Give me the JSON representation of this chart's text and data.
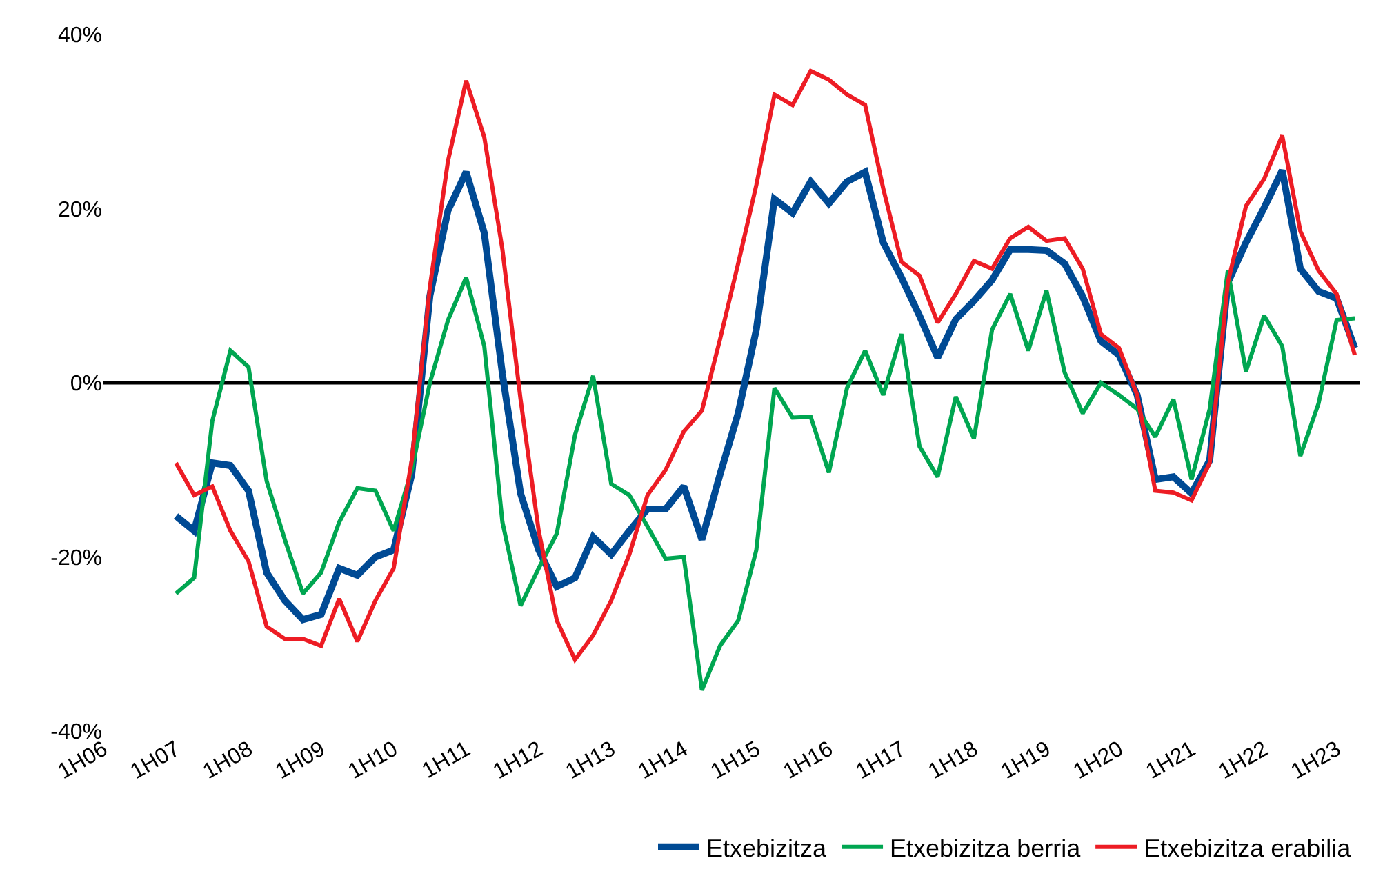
{
  "chart_data": {
    "type": "line",
    "categories": [
      "1H06",
      null,
      null,
      null,
      "1H07",
      null,
      null,
      null,
      "1H08",
      null,
      null,
      null,
      "1H09",
      null,
      null,
      null,
      "1H10",
      null,
      null,
      null,
      "1H11",
      null,
      null,
      null,
      "1H12",
      null,
      null,
      null,
      "1H13",
      null,
      null,
      null,
      "1H14",
      null,
      null,
      null,
      "1H15",
      null,
      null,
      null,
      "1H16",
      null,
      null,
      null,
      "1H17",
      null,
      null,
      null,
      "1H18",
      null,
      null,
      null,
      "1H19",
      null,
      null,
      null,
      "1H20",
      null,
      null,
      null,
      "1H21",
      null,
      null,
      null,
      "1H22",
      null,
      null,
      null,
      "1H23",
      null
    ],
    "series": [
      {
        "name": "Etxebizitza",
        "color": "#004a94",
        "values": [
          null,
          null,
          null,
          null,
          -15.3,
          -17,
          -9.2,
          -9.5,
          -12.4,
          -21.8,
          -25,
          -27.2,
          -26.6,
          -21.3,
          -22.1,
          -20,
          -19.2,
          -10.5,
          10,
          19.8,
          24.2,
          17.2,
          1,
          -12.7,
          -19.2,
          -23.4,
          -22.4,
          -17.7,
          -19.7,
          -17,
          -14.5,
          -14.5,
          -11.9,
          -18,
          -10.5,
          -3.5,
          6.1,
          21.1,
          19.5,
          23.1,
          20.6,
          23.1,
          24.2,
          16.1,
          12.1,
          7.7,
          2.9,
          7.3,
          9.4,
          11.8,
          15.3,
          15.3,
          15.2,
          13.7,
          9.9,
          4.8,
          3.2,
          -1.4,
          -11.1,
          -10.8,
          -12.7,
          -8.9,
          11.5,
          16.1,
          20.1,
          24.4,
          13.1,
          10.5,
          9.7,
          4.0
        ]
      },
      {
        "name": "Etxebizitza berria",
        "color": "#00a651",
        "values": [
          null,
          null,
          null,
          null,
          -24.2,
          -22.4,
          -4.4,
          3.7,
          1.8,
          -11.3,
          -18,
          -24.2,
          -21.8,
          -16,
          -12.1,
          -12.4,
          -17,
          -10,
          0,
          7.2,
          12.1,
          4.2,
          -16,
          -25.6,
          -21.3,
          -17.3,
          -6,
          0.8,
          -11.6,
          -12.9,
          -16.5,
          -20.2,
          -20,
          -35.3,
          -30.2,
          -27.3,
          -19.2,
          -0.6,
          -4,
          -3.9,
          -10.3,
          -0.6,
          3.7,
          -1.4,
          5.6,
          -7.3,
          -10.8,
          -1.6,
          -6.4,
          6.1,
          10.2,
          3.7,
          10.6,
          1.2,
          -3.5,
          0,
          -1.4,
          -3,
          -6.2,
          -1.9,
          -11.1,
          -3,
          12.9,
          1.3,
          7.7,
          4.2,
          -8.4,
          -2.4,
          7.2,
          7.4
        ]
      },
      {
        "name": "Etxebizitza erabilia",
        "color": "#ed1c24",
        "values": [
          null,
          null,
          null,
          null,
          -9.2,
          -12.9,
          -11.9,
          -17,
          -20.5,
          -28,
          -29.4,
          -29.4,
          -30.2,
          -24.8,
          -29.7,
          -25,
          -21.3,
          -8.9,
          11,
          25.5,
          34.7,
          28.2,
          15.3,
          -1.9,
          -17,
          -27.3,
          -31.8,
          -29,
          -25,
          -19.7,
          -12.9,
          -10,
          -5.6,
          -3.2,
          5,
          13.7,
          22.7,
          33.1,
          31.9,
          35.8,
          34.8,
          33.1,
          31.9,
          22.3,
          13.9,
          12.3,
          6.9,
          10.2,
          14,
          13.1,
          16.6,
          17.9,
          16.3,
          16.6,
          13.1,
          5.6,
          4,
          -1.4,
          -12.4,
          -12.6,
          -13.5,
          -9.2,
          11.5,
          20.3,
          23.4,
          28.4,
          17.4,
          12.9,
          10.2,
          3.2
        ]
      }
    ],
    "ylim": [
      -40,
      40
    ],
    "yticks": [
      {
        "value": -40,
        "label": "-40%"
      },
      {
        "value": -20,
        "label": "-20%"
      },
      {
        "value": 0,
        "label": "0%"
      },
      {
        "value": 20,
        "label": "20%"
      },
      {
        "value": 40,
        "label": "40%"
      }
    ],
    "ref_lines": [
      {
        "axis": "y",
        "value": 0,
        "color": "#000000"
      }
    ],
    "grid": false,
    "legend": "bottom",
    "marker": "none",
    "line_style": "solid"
  }
}
